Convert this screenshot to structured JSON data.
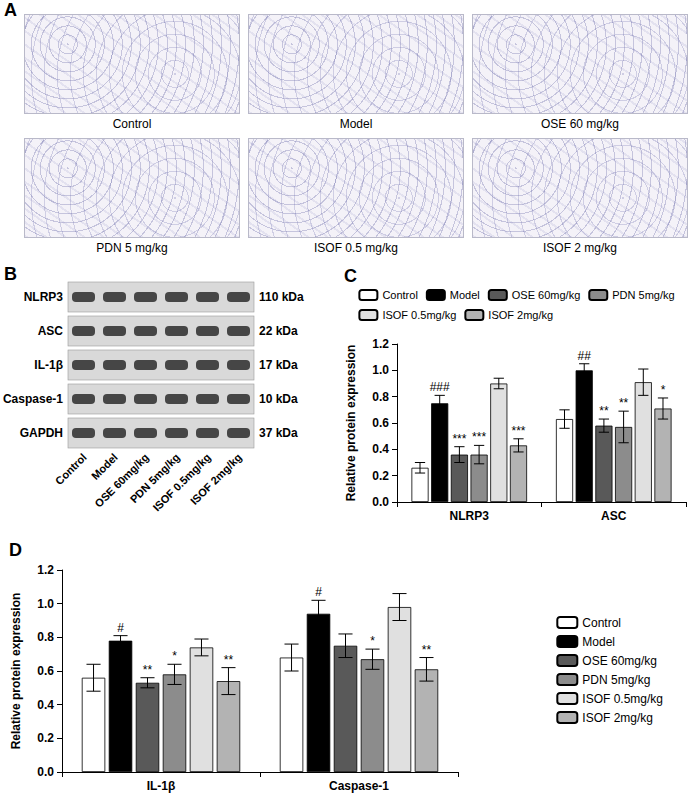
{
  "figure": {
    "panel_a": {
      "label": "A",
      "images": [
        "Control",
        "Model",
        "OSE 60 mg/kg",
        "PDN 5 mg/kg",
        "ISOF 0.5 mg/kg",
        "ISOF 2 mg/kg"
      ]
    },
    "panel_b": {
      "label": "B",
      "rows": [
        {
          "protein": "NLRP3",
          "size": "110 kDa"
        },
        {
          "protein": "ASC",
          "size": "22 kDa"
        },
        {
          "protein": "IL-1β",
          "size": "17 kDa"
        },
        {
          "protein": "Caspase-1",
          "size": "10 kDa"
        },
        {
          "protein": "GAPDH",
          "size": "37 kDa"
        }
      ],
      "lanes": [
        "Control",
        "Model",
        "OSE 60mg/kg",
        "PDN 5mg/kg",
        "ISOF 0.5mg/kg",
        "ISOF 2mg/kg"
      ]
    }
  },
  "chart_data": [
    {
      "type": "bar",
      "title": "C",
      "ylabel": "Relative protein expression",
      "categories": [
        "NLRP3",
        "ASC"
      ],
      "ylim": [
        0,
        1.2
      ],
      "yticks": [
        {
          "value": 0,
          "label": "0.0"
        },
        0.2,
        0.4,
        0.6,
        0.8,
        {
          "value": 1,
          "label": "1.0"
        },
        1.2
      ],
      "legend": "top",
      "series": [
        {
          "name": "Control",
          "color": "#ffffff",
          "values": [
            0.26,
            0.63
          ],
          "errors": [
            0.04,
            0.07
          ],
          "significance": [
            null,
            null
          ]
        },
        {
          "name": "Model",
          "color": "#000000",
          "values": [
            0.75,
            1.0
          ],
          "errors": [
            0.06,
            0.05
          ],
          "significance": [
            "###",
            "##"
          ]
        },
        {
          "name": "OSE 60mg/kg",
          "color": "#595959",
          "values": [
            0.36,
            0.58
          ],
          "errors": [
            0.06,
            0.05
          ],
          "significance": [
            "***",
            "**"
          ]
        },
        {
          "name": "PDN 5mg/kg",
          "color": "#8c8c8c",
          "values": [
            0.36,
            0.57
          ],
          "errors": [
            0.07,
            0.12
          ],
          "significance": [
            "***",
            "**"
          ]
        },
        {
          "name": "ISOF 0.5mg/kg",
          "color": "#e0e0e0",
          "values": [
            0.9,
            0.91
          ],
          "errors": [
            0.04,
            0.1
          ],
          "significance": [
            null,
            null
          ]
        },
        {
          "name": "ISOF 2mg/kg",
          "color": "#b3b3b3",
          "values": [
            0.43,
            0.71
          ],
          "errors": [
            0.05,
            0.08
          ],
          "significance": [
            "***",
            "*"
          ]
        }
      ]
    },
    {
      "type": "bar",
      "title": "D",
      "ylabel": "Relative protein expression",
      "categories": [
        "IL-1β",
        "Caspase-1"
      ],
      "ylim": [
        0,
        1.2
      ],
      "yticks": [
        {
          "value": 0,
          "label": "0.0"
        },
        0.2,
        0.4,
        0.6,
        0.8,
        {
          "value": 1,
          "label": "1.0"
        },
        1.2
      ],
      "legend": "right",
      "series": [
        {
          "name": "Control",
          "color": "#ffffff",
          "values": [
            0.56,
            0.68
          ],
          "errors": [
            0.08,
            0.08
          ],
          "significance": [
            null,
            null
          ]
        },
        {
          "name": "Model",
          "color": "#000000",
          "values": [
            0.78,
            0.94
          ],
          "errors": [
            0.03,
            0.08
          ],
          "significance": [
            "#",
            "#"
          ]
        },
        {
          "name": "OSE 60mg/kg",
          "color": "#595959",
          "values": [
            0.53,
            0.75
          ],
          "errors": [
            0.03,
            0.07
          ],
          "significance": [
            "**",
            null
          ]
        },
        {
          "name": "PDN 5mg/kg",
          "color": "#8c8c8c",
          "values": [
            0.58,
            0.67
          ],
          "errors": [
            0.06,
            0.06
          ],
          "significance": [
            "*",
            "*"
          ]
        },
        {
          "name": "ISOF 0.5mg/kg",
          "color": "#e0e0e0",
          "values": [
            0.74,
            0.98
          ],
          "errors": [
            0.05,
            0.08
          ],
          "significance": [
            null,
            null
          ]
        },
        {
          "name": "ISOF 2mg/kg",
          "color": "#b3b3b3",
          "values": [
            0.54,
            0.61
          ],
          "errors": [
            0.08,
            0.07
          ],
          "significance": [
            "**",
            "**"
          ]
        }
      ]
    }
  ]
}
